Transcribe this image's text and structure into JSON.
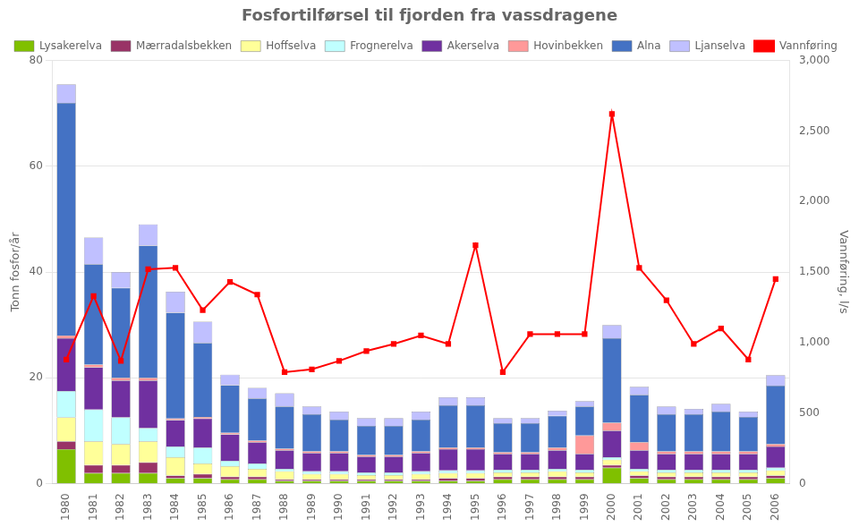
{
  "chart_data": {
    "type": "bar",
    "title": "Fosfortilførsel til fjorden fra vassdragene",
    "categories": [
      "1980",
      "1981",
      "1982",
      "1983",
      "1984",
      "1985",
      "1986",
      "1987",
      "1988",
      "1989",
      "1990",
      "1991",
      "1992",
      "1993",
      "1994",
      "1995",
      "1996",
      "1997",
      "1998",
      "1999",
      "2000",
      "2001",
      "2002",
      "2003",
      "2004",
      "2005",
      "2006"
    ],
    "stacked": true,
    "series": [
      {
        "name": "Lysakerelva",
        "color": "#80c000",
        "values": [
          6.5,
          2.0,
          2.0,
          2.0,
          1.0,
          1.0,
          0.8,
          0.8,
          0.5,
          0.5,
          0.5,
          0.5,
          0.5,
          0.5,
          0.5,
          0.5,
          0.8,
          0.8,
          0.8,
          0.8,
          3.0,
          1.0,
          0.8,
          0.8,
          0.8,
          0.8,
          1.0
        ]
      },
      {
        "name": "Mærradalsbekken",
        "color": "#993366",
        "values": [
          1.5,
          1.5,
          1.5,
          2.0,
          0.5,
          0.8,
          0.5,
          0.5,
          0.3,
          0.3,
          0.3,
          0.3,
          0.3,
          0.3,
          0.5,
          0.5,
          0.5,
          0.5,
          0.5,
          0.5,
          0.5,
          0.5,
          0.5,
          0.5,
          0.5,
          0.5,
          0.5
        ]
      },
      {
        "name": "Hoffselva",
        "color": "#ffff99",
        "values": [
          4.5,
          4.5,
          4.0,
          4.0,
          3.5,
          2.0,
          2.0,
          1.5,
          1.5,
          1.0,
          1.0,
          0.8,
          0.8,
          1.0,
          1.0,
          1.0,
          0.8,
          0.8,
          1.0,
          0.8,
          1.0,
          0.8,
          0.8,
          0.8,
          0.8,
          0.8,
          1.0
        ]
      },
      {
        "name": "Frognerelva",
        "color": "#c0ffff",
        "values": [
          5.0,
          6.0,
          5.0,
          2.5,
          2.0,
          3.0,
          1.0,
          1.0,
          0.5,
          0.5,
          0.5,
          0.5,
          0.5,
          0.5,
          0.5,
          0.5,
          0.5,
          0.5,
          0.5,
          0.5,
          0.5,
          0.5,
          0.5,
          0.5,
          0.5,
          0.5,
          0.5
        ]
      },
      {
        "name": "Akerselva",
        "color": "#7030a0",
        "values": [
          10.0,
          8.0,
          7.0,
          9.0,
          5.0,
          5.5,
          5.0,
          4.0,
          3.5,
          3.5,
          3.5,
          3.0,
          3.0,
          3.5,
          4.0,
          4.0,
          3.0,
          3.0,
          3.5,
          3.0,
          5.0,
          3.5,
          3.0,
          3.0,
          3.0,
          3.0,
          4.0
        ]
      },
      {
        "name": "Hovinbekken",
        "color": "#ff9999",
        "values": [
          0.5,
          0.5,
          0.5,
          0.5,
          0.3,
          0.3,
          0.3,
          0.3,
          0.3,
          0.3,
          0.3,
          0.3,
          0.3,
          0.3,
          0.3,
          0.3,
          0.3,
          0.3,
          0.5,
          3.5,
          1.5,
          1.5,
          0.5,
          0.5,
          0.5,
          0.5,
          0.5
        ]
      },
      {
        "name": "Alna",
        "color": "#4472c4",
        "values": [
          44.0,
          19.0,
          17.0,
          25.0,
          20.0,
          14.0,
          9.0,
          8.0,
          8.0,
          7.0,
          6.0,
          5.5,
          5.5,
          6.0,
          8.0,
          8.0,
          5.5,
          5.5,
          6.0,
          5.5,
          16.0,
          9.0,
          7.0,
          7.0,
          7.5,
          6.5,
          11.0
        ]
      },
      {
        "name": "Ljanselva",
        "color": "#c0c0ff",
        "values": [
          3.5,
          5.0,
          3.0,
          4.0,
          4.0,
          4.0,
          2.0,
          2.0,
          2.5,
          1.5,
          1.5,
          1.5,
          1.5,
          1.5,
          1.5,
          1.5,
          1.0,
          1.0,
          1.0,
          1.0,
          2.5,
          1.5,
          1.5,
          1.0,
          1.5,
          1.0,
          2.0
        ]
      },
      {
        "name": "Vannføring",
        "type": "line",
        "axis": "y2",
        "color": "#ff0000",
        "marker": "square",
        "values": [
          880,
          1330,
          870,
          1520,
          1530,
          1230,
          1430,
          1340,
          790,
          810,
          870,
          940,
          990,
          1050,
          990,
          1690,
          790,
          1060,
          1060,
          1060,
          2620,
          1530,
          1300,
          990,
          1100,
          880,
          1450
        ]
      }
    ],
    "ylabel": "Tonn fosfor/år",
    "y2label": "Vannføring, l/s",
    "ylim": [
      0,
      80
    ],
    "yticks": [
      0,
      20,
      40,
      60,
      80
    ],
    "y2lim": [
      0,
      3000
    ],
    "y2ticks": [
      0,
      500,
      1000,
      1500,
      2000,
      2500,
      3000
    ],
    "grid": true,
    "legend": "upper left"
  }
}
